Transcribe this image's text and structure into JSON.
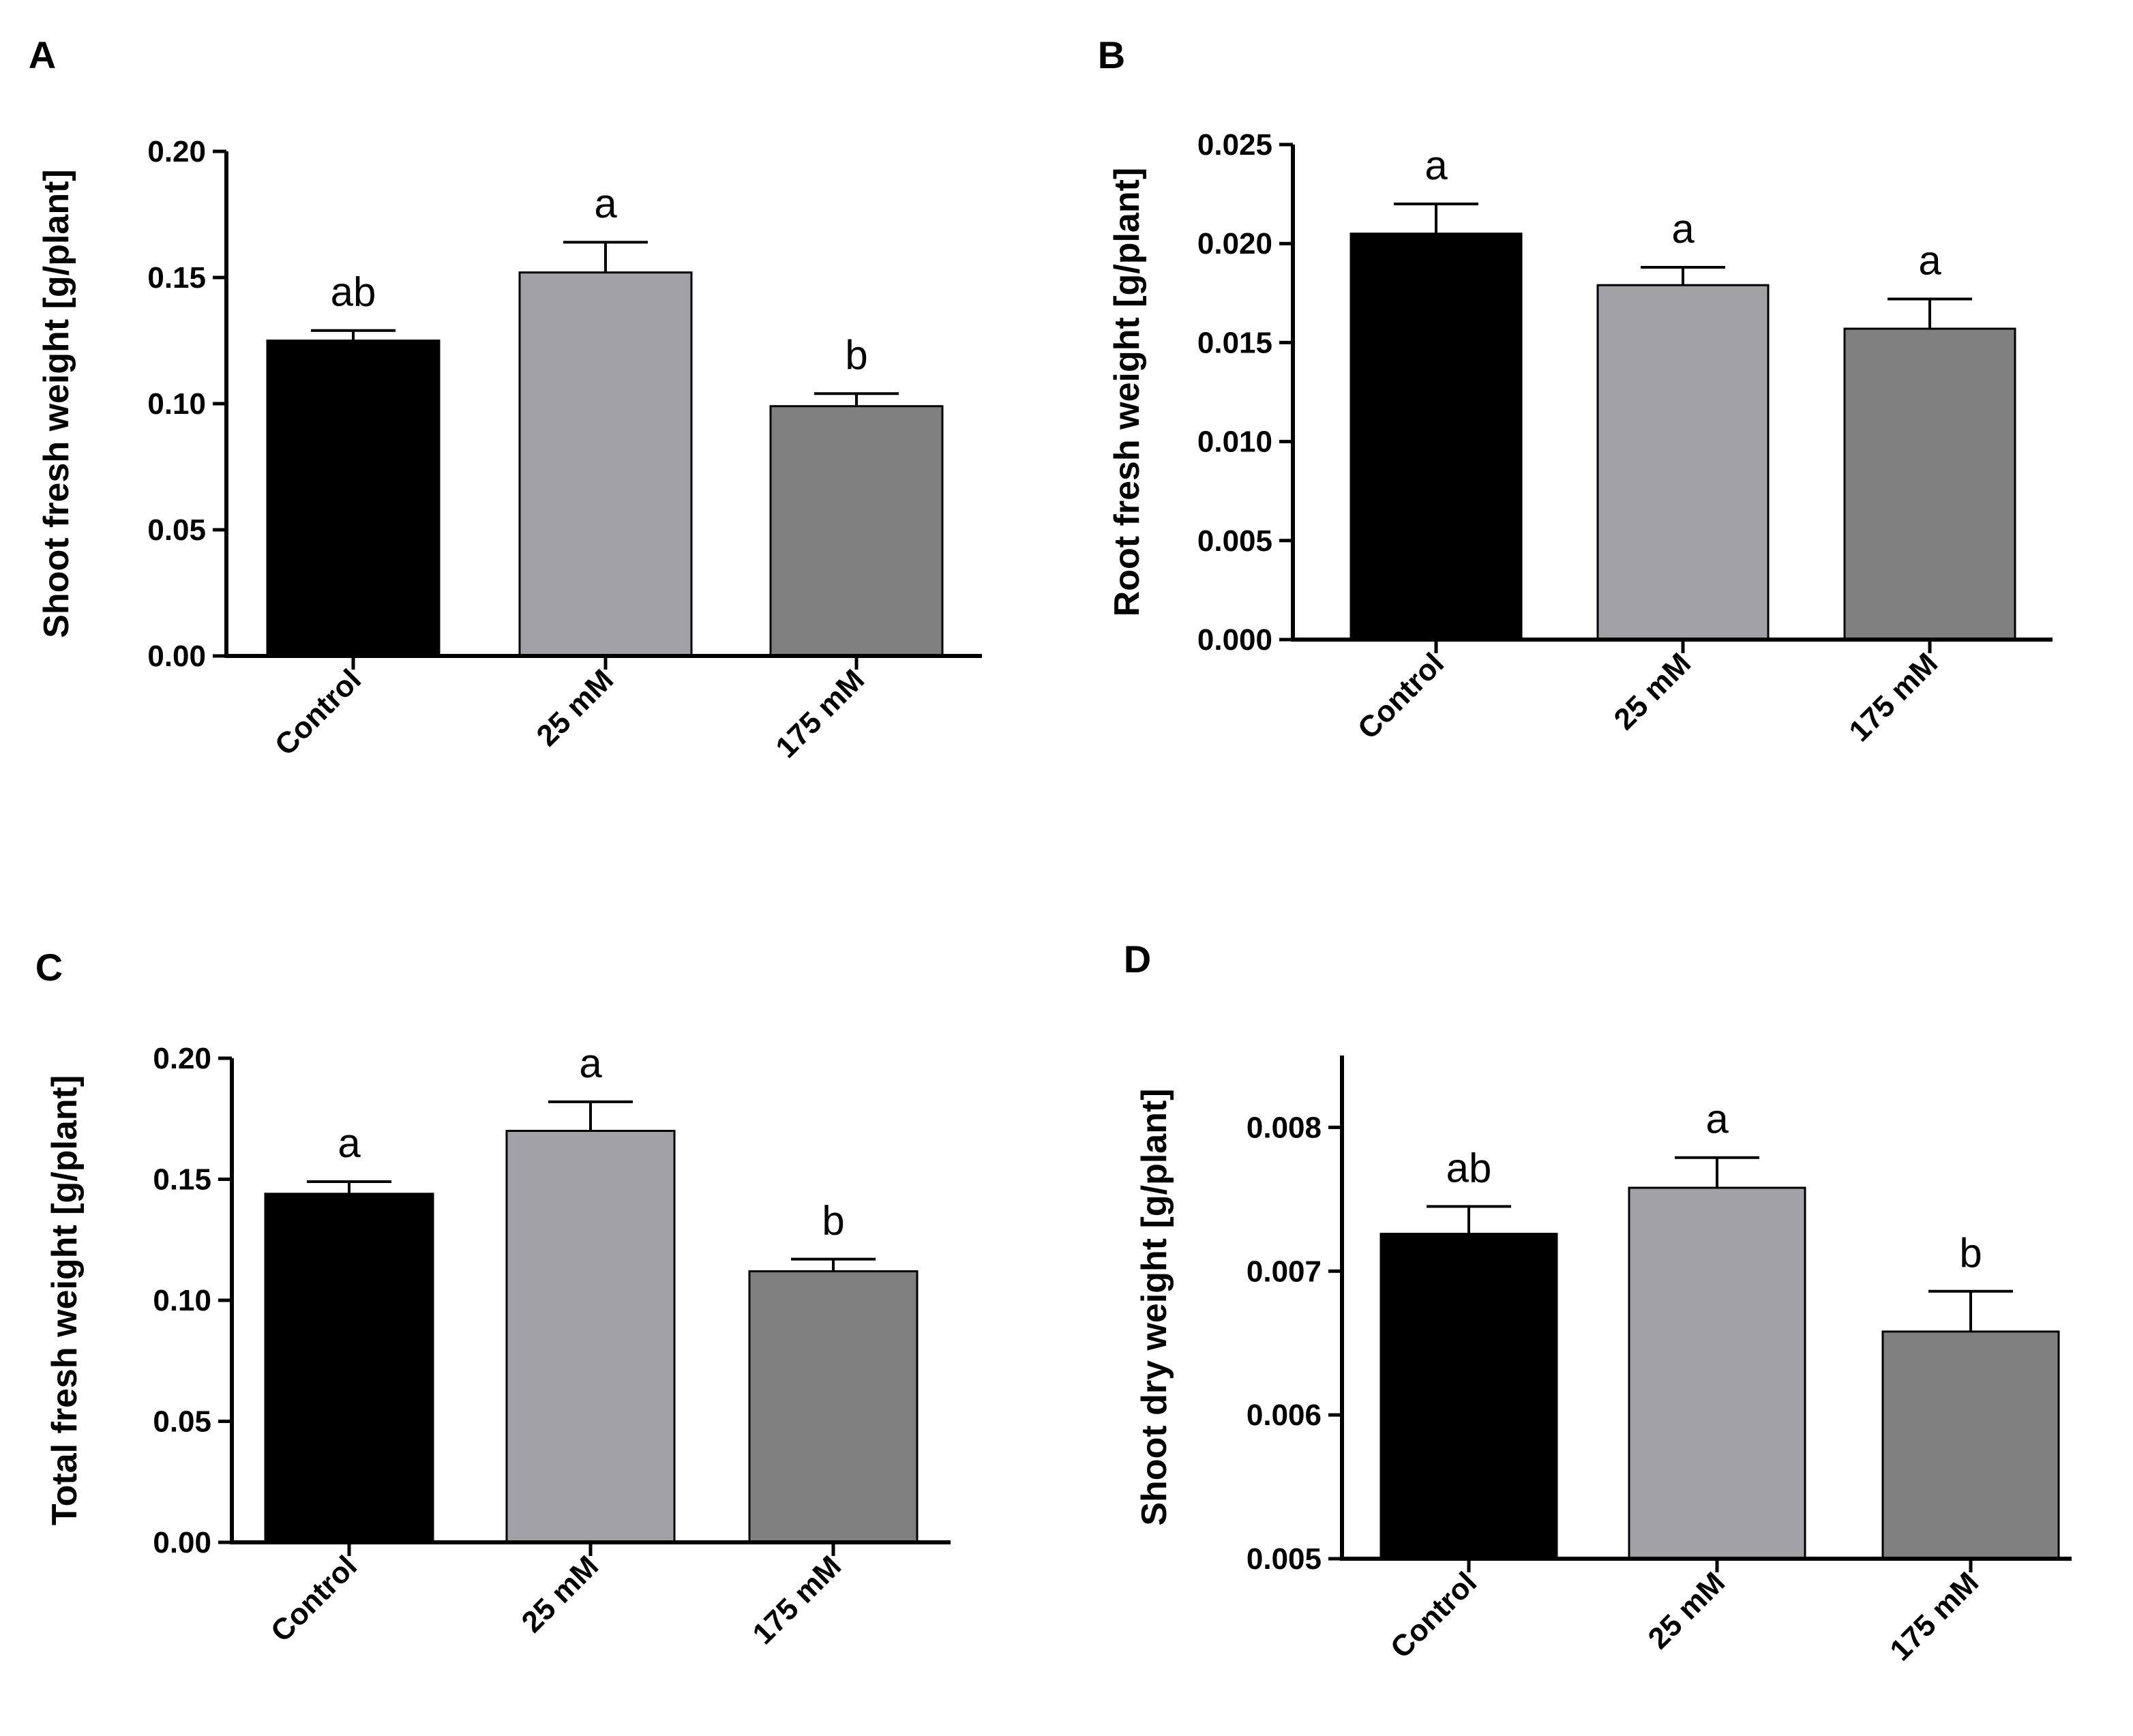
{
  "chart_data": [
    {
      "panel": "A",
      "type": "bar",
      "ylabel": "Shoot fresh weight [g/plant]",
      "categories": [
        "Control",
        "25 mM",
        "175 mM"
      ],
      "values": [
        0.125,
        0.152,
        0.099
      ],
      "errors": [
        0.004,
        0.012,
        0.005
      ],
      "significance": [
        "ab",
        "a",
        "b"
      ],
      "ylim": [
        0,
        0.2
      ],
      "yticks": [
        "0.00",
        "0.05",
        "0.10",
        "0.15",
        "0.20"
      ],
      "colors": [
        "#000000",
        "#a2a1a6",
        "#808080"
      ]
    },
    {
      "panel": "B",
      "type": "bar",
      "ylabel": "Root fresh weight [g/plant]",
      "categories": [
        "Control",
        "25 mM",
        "175 mM"
      ],
      "values": [
        0.0205,
        0.0179,
        0.0157
      ],
      "errors": [
        0.0015,
        0.0009,
        0.0015
      ],
      "significance": [
        "a",
        "a",
        "a"
      ],
      "ylim": [
        0,
        0.025
      ],
      "yticks": [
        "0.000",
        "0.005",
        "0.010",
        "0.015",
        "0.020",
        "0.025"
      ],
      "colors": [
        "#000000",
        "#a2a1a6",
        "#808080"
      ]
    },
    {
      "panel": "C",
      "type": "bar",
      "ylabel": "Total fresh weight [g/plant]",
      "categories": [
        "Control",
        "25 mM",
        "175 mM"
      ],
      "values": [
        0.144,
        0.17,
        0.112
      ],
      "errors": [
        0.005,
        0.012,
        0.005
      ],
      "significance": [
        "a",
        "a",
        "b"
      ],
      "ylim": [
        0,
        0.2
      ],
      "yticks": [
        "0.00",
        "0.05",
        "0.10",
        "0.15",
        "0.20"
      ],
      "colors": [
        "#000000",
        "#a2a1a6",
        "#808080"
      ]
    },
    {
      "panel": "D",
      "type": "bar",
      "ylabel": "Shoot dry weight [g/plant]",
      "categories": [
        "Control",
        "25 mM",
        "175 mM"
      ],
      "values": [
        0.00726,
        0.00758,
        0.00658
      ],
      "errors": [
        0.00019,
        0.00021,
        0.00028
      ],
      "significance": [
        "ab",
        "a",
        "b"
      ],
      "ylim": [
        0.005,
        0.0085
      ],
      "yticks": [
        "0.005",
        "0.006",
        "0.007",
        "0.008"
      ],
      "colors": [
        "#000000",
        "#a2a1a6",
        "#808080"
      ]
    }
  ]
}
